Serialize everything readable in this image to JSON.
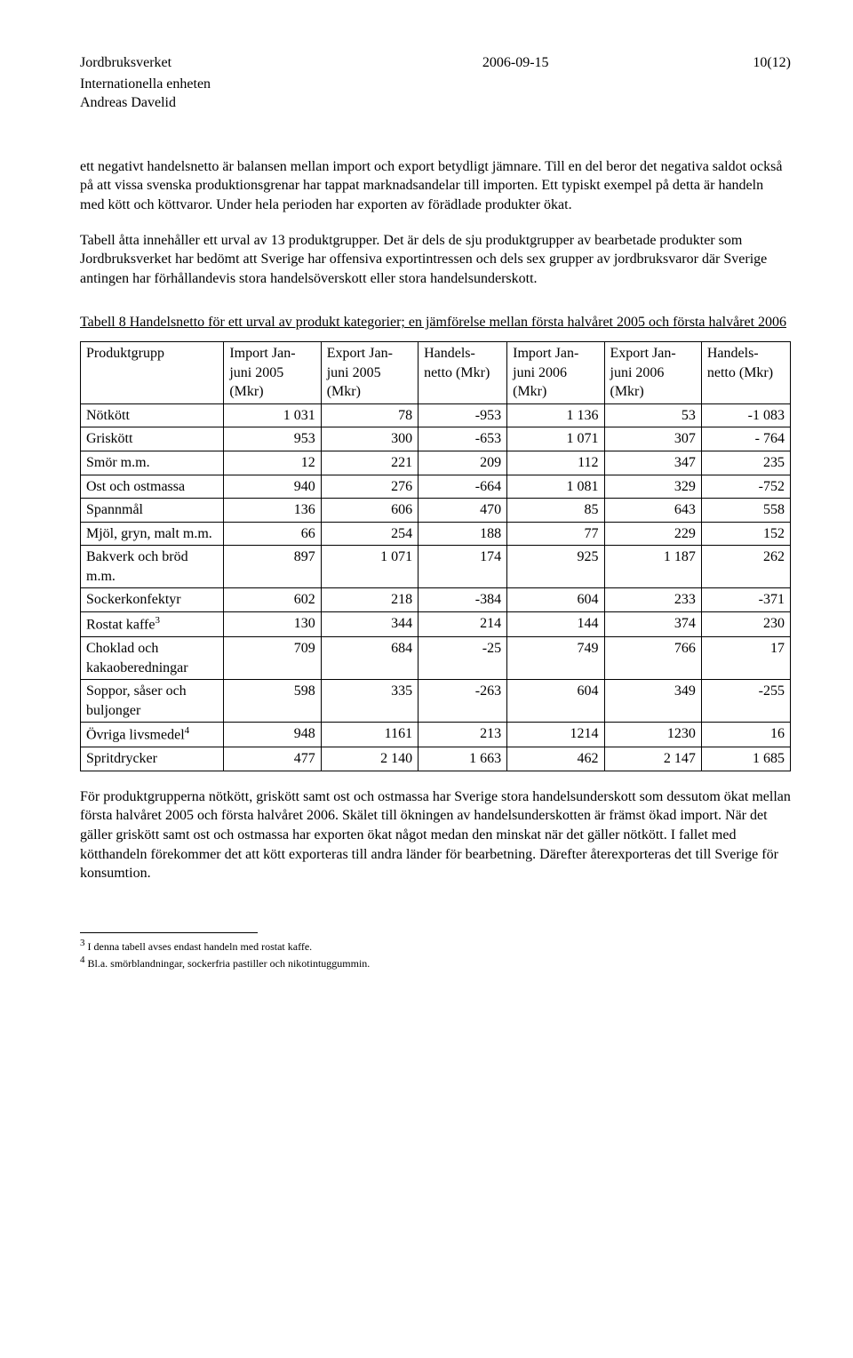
{
  "header": {
    "org": "Jordbruksverket",
    "unit": "Internationella enheten",
    "author": "Andreas Davelid",
    "date": "2006-09-15",
    "page": "10(12)"
  },
  "para1": "ett negativt handelsnetto är balansen mellan import och export betydligt jämnare. Till en del beror det negativa saldot också på att vissa svenska produktionsgrenar har tappat marknadsandelar till importen. Ett typiskt exempel på detta är handeln med kött och köttvaror. Under hela perioden har exporten av förädlade produkter ökat.",
  "para2": "Tabell åtta innehåller ett urval av 13 produktgrupper. Det är dels de sju produktgrupper av bearbetade produkter som Jordbruksverket har bedömt att Sverige har offensiva exportintressen och dels sex grupper av jordbruksvaror där Sverige antingen har förhållandevis stora handelsöverskott eller stora handelsunderskott.",
  "table": {
    "caption": "Tabell 8 Handelsnetto för ett urval av produkt kategorier; en jämförelse mellan första halvåret 2005 och första halvåret 2006",
    "columns": [
      "Produktgrupp",
      "Import Jan-juni 2005 (Mkr)",
      "Export Jan-juni 2005 (Mkr)",
      "Handels-netto (Mkr)",
      "Import Jan-juni 2006 (Mkr)",
      "Export Jan-juni 2006 (Mkr)",
      "Handels-netto (Mkr)"
    ],
    "rows": [
      [
        "Nötkött",
        "1 031",
        "78",
        "-953",
        "1 136",
        "53",
        "-1 083"
      ],
      [
        "Griskött",
        "953",
        "300",
        "-653",
        "1 071",
        "307",
        "- 764"
      ],
      [
        "Smör m.m.",
        "12",
        "221",
        "209",
        "112",
        "347",
        "235"
      ],
      [
        "Ost och ostmassa",
        "940",
        "276",
        "-664",
        "1 081",
        "329",
        "-752"
      ],
      [
        "Spannmål",
        "136",
        "606",
        "470",
        "85",
        "643",
        "558"
      ],
      [
        "Mjöl, gryn, malt m.m.",
        "66",
        "254",
        "188",
        "77",
        "229",
        "152"
      ],
      [
        "Bakverk och bröd m.m.",
        "897",
        "1 071",
        "174",
        "925",
        "1 187",
        "262"
      ],
      [
        "Sockerkonfektyr",
        "602",
        "218",
        "-384",
        "604",
        "233",
        "-371"
      ],
      [
        "Rostat kaffe",
        "130",
        "344",
        "214",
        "144",
        "374",
        "230"
      ],
      [
        "Choklad och kakaoberedningar",
        "709",
        "684",
        "-25",
        "749",
        "766",
        "17"
      ],
      [
        "Soppor, såser och buljonger",
        "598",
        "335",
        "-263",
        "604",
        "349",
        "-255"
      ],
      [
        "Övriga livsmedel",
        "948",
        "1161",
        "213",
        "1214",
        "1230",
        "16"
      ],
      [
        "Spritdrycker",
        "477",
        "2 140",
        "1 663",
        "462",
        "2 147",
        "1 685"
      ]
    ],
    "row_sups": {
      "8": "3",
      "11": "4"
    }
  },
  "para3": "För produktgrupperna nötkött, griskött samt ost och ostmassa har Sverige stora handelsunderskott som dessutom ökat mellan första halvåret 2005 och första halvåret 2006. Skälet till ökningen av handelsunderskotten är främst ökad import. När det gäller griskött samt ost och ostmassa har exporten ökat något medan den minskat när det gäller nötkött. I fallet med kötthandeln förekommer det att kött exporteras till andra länder för bearbetning. Därefter återexporteras det till Sverige för konsumtion.",
  "footnotes": {
    "fn3": "I denna tabell avses endast handeln med rostat kaffe.",
    "fn4": "Bl.a. smörblandningar, sockerfria pastiller och nikotintuggummin."
  }
}
